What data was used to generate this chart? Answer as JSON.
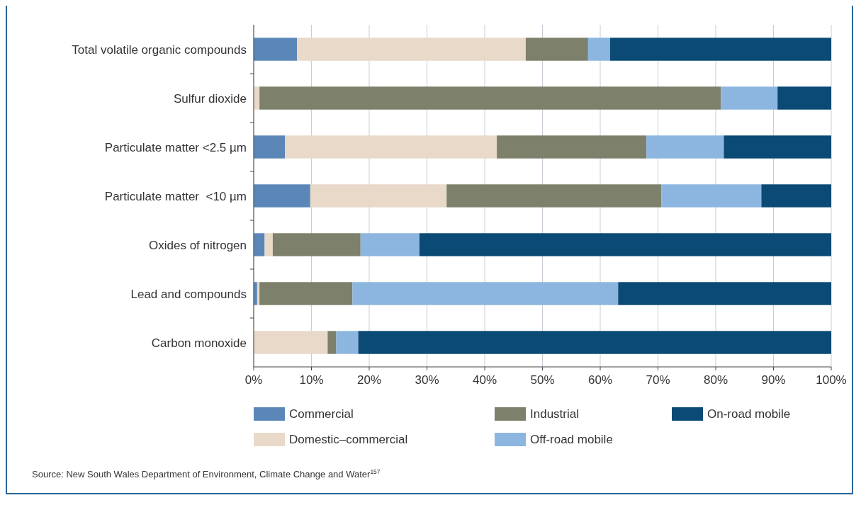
{
  "chart_data": {
    "type": "bar",
    "orientation": "horizontal",
    "stacked": true,
    "categories": [
      "Total volatile organic compounds",
      "Sulfur dioxide",
      "Particulate matter <2.5 µm",
      "Particulate matter  <10 µm",
      "Oxides of nitrogen",
      "Lead and compounds",
      "Carbon monoxide"
    ],
    "series": [
      {
        "name": "Commercial",
        "color": "#5b87b8",
        "values": [
          7.5,
          0,
          5.4,
          9.8,
          1.9,
          0.6,
          0
        ]
      },
      {
        "name": "Domestic–commercial",
        "color": "#e8d9c9",
        "values": [
          39.6,
          1.0,
          36.7,
          23.6,
          1.4,
          0.4,
          12.8
        ]
      },
      {
        "name": "Industrial",
        "color": "#7d806a",
        "values": [
          10.8,
          79.9,
          25.9,
          37.2,
          15.2,
          16.1,
          1.5
        ]
      },
      {
        "name": "Off-road mobile",
        "color": "#8cb6e0",
        "values": [
          3.8,
          9.8,
          13.4,
          17.3,
          10.2,
          46.0,
          3.8
        ]
      },
      {
        "name": "On-road mobile",
        "color": "#0a4a74",
        "values": [
          38.3,
          9.3,
          18.6,
          12.1,
          71.3,
          36.9,
          81.9
        ]
      }
    ],
    "xlim": [
      0,
      100
    ],
    "xticks": [
      {
        "value": 0,
        "label": "0%"
      },
      {
        "value": 10,
        "label": "10%"
      },
      {
        "value": 20,
        "label": "20%"
      },
      {
        "value": 30,
        "label": "30%"
      },
      {
        "value": 40,
        "label": "40%"
      },
      {
        "value": 50,
        "label": "50%"
      },
      {
        "value": 60,
        "label": "60%"
      },
      {
        "value": 70,
        "label": "70%"
      },
      {
        "value": 80,
        "label": "80%"
      },
      {
        "value": 90,
        "label": "90%"
      },
      {
        "value": 100,
        "label": "100%"
      }
    ],
    "grid": "x",
    "legend": "bottom",
    "annotations": [
      "Source: New South Wales Department of Environment, Climate Change and Water$^{157}$"
    ]
  }
}
